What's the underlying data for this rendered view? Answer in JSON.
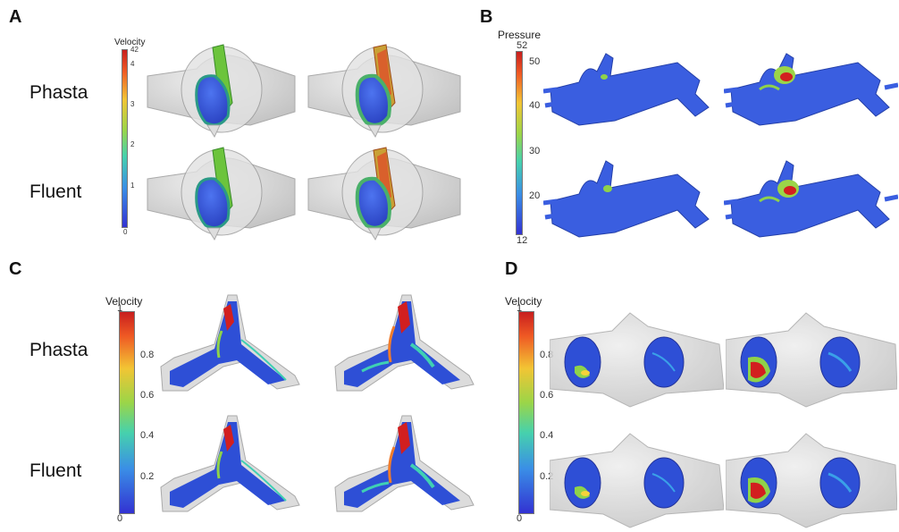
{
  "panels": {
    "A": {
      "letter": "A",
      "legend_title": "Velocity",
      "rows": [
        "Phasta",
        "Fluent"
      ],
      "ticks": [
        "42",
        "4",
        "3",
        "2",
        "1",
        "0"
      ]
    },
    "B": {
      "letter": "B",
      "legend_title": "Pressure",
      "ticks": [
        "52",
        "50",
        "40",
        "30",
        "20",
        "12"
      ]
    },
    "C": {
      "letter": "C",
      "legend_title": "Velocity",
      "rows": [
        "Phasta",
        "Fluent"
      ],
      "ticks": [
        "1",
        "0.8",
        "0.6",
        "0.4",
        "0.2",
        "0"
      ]
    },
    "D": {
      "letter": "D",
      "legend_title": "Velocity",
      "ticks": [
        "1",
        "0.8",
        "0.6",
        "0.4",
        "0.2",
        "0"
      ]
    }
  },
  "colors": {
    "rainbow": [
      "#d7191c",
      "#f07c2c",
      "#f5d33a",
      "#8fd24a",
      "#3fd0b3",
      "#3aa0e8",
      "#3040d8",
      "#2a2ad0"
    ],
    "vessel_gray": "#d4d4d4",
    "flow_blue": "#2e4fd6",
    "flow_red": "#d21f1f"
  }
}
